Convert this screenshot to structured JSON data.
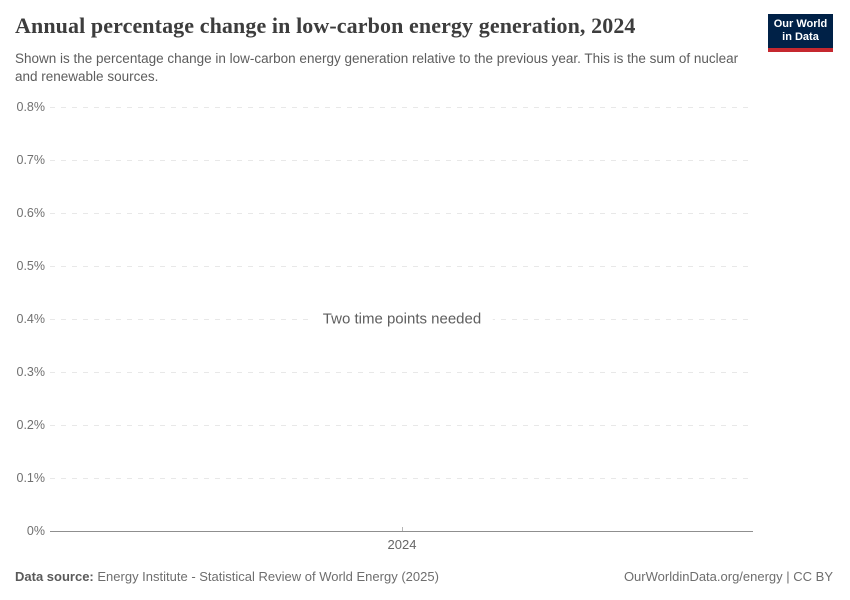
{
  "header": {
    "title": "Annual percentage change in low-carbon energy generation, 2024",
    "subtitle": "Shown is the percentage change in low-carbon energy generation relative to the previous year. This is the sum of nuclear and renewable sources."
  },
  "logo": {
    "line1": "Our World",
    "line2": "in Data",
    "bg_color": "#002147",
    "accent_color": "#c5282f"
  },
  "chart_data": {
    "type": "line",
    "title": "Annual percentage change in low-carbon energy generation, 2024",
    "series": [],
    "empty_state_message": "Two time points needed",
    "grid": "dashed",
    "y_axis": {
      "range": [
        0,
        0.8
      ],
      "unit": "%",
      "ticks": [
        {
          "label": "0.8%",
          "value": 0.8
        },
        {
          "label": "0.7%",
          "value": 0.7
        },
        {
          "label": "0.6%",
          "value": 0.6
        },
        {
          "label": "0.5%",
          "value": 0.5
        },
        {
          "label": "0.4%",
          "value": 0.4
        },
        {
          "label": "0.3%",
          "value": 0.3
        },
        {
          "label": "0.2%",
          "value": 0.2
        },
        {
          "label": "0.1%",
          "value": 0.1
        },
        {
          "label": "0%",
          "value": 0
        }
      ]
    },
    "x_axis": {
      "ticks": [
        {
          "label": "2024",
          "position": 0.5
        }
      ]
    }
  },
  "footer": {
    "source_label": "Data source:",
    "source_text": "Energy Institute - Statistical Review of World Energy (2025)",
    "rights": "OurWorldinData.org/energy | CC BY"
  }
}
